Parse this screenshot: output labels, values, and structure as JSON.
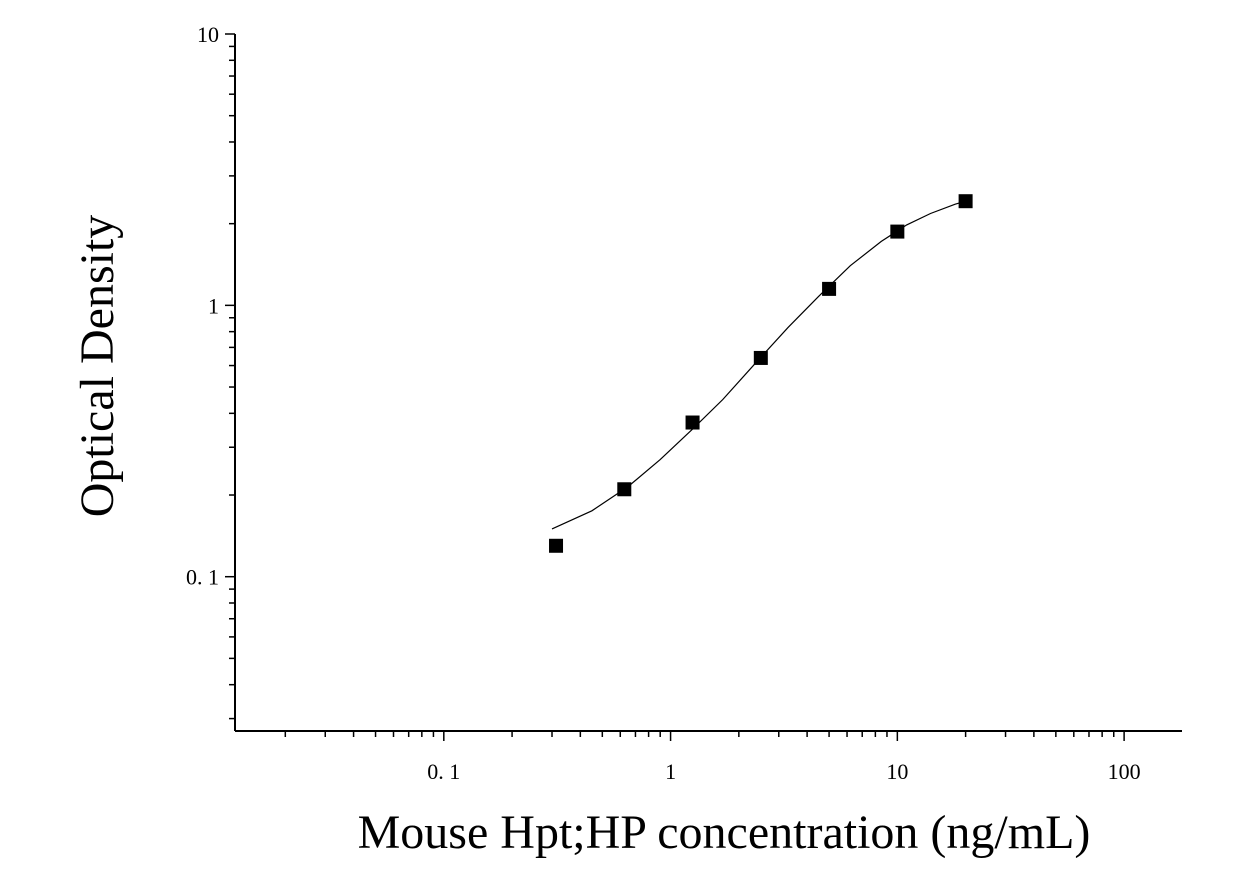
{
  "chart_data": {
    "type": "scatter",
    "xscale": "log",
    "yscale": "log",
    "xlabel": "Mouse Hpt;HP concentration (ng/mL)",
    "ylabel": "Optical Density",
    "xlim": [
      0.012,
      180
    ],
    "ylim": [
      0.027,
      10
    ],
    "x_ticks": [
      {
        "value": 0.1,
        "label": "0. 1"
      },
      {
        "value": 1,
        "label": "1"
      },
      {
        "value": 10,
        "label": "10"
      },
      {
        "value": 100,
        "label": "100"
      }
    ],
    "y_ticks": [
      {
        "value": 0.1,
        "label": "0. 1"
      },
      {
        "value": 1,
        "label": "1"
      },
      {
        "value": 10,
        "label": "10"
      }
    ],
    "grid": false,
    "series": [
      {
        "marker": "square",
        "color": "#000000",
        "x": [
          0.3125,
          0.625,
          1.25,
          2.5,
          5,
          10,
          20
        ],
        "y": [
          0.13,
          0.21,
          0.37,
          0.64,
          1.15,
          1.87,
          2.42
        ]
      }
    ],
    "fit_curve": {
      "color": "#000000",
      "x": [
        0.3,
        0.45,
        0.65,
        0.9,
        1.25,
        1.7,
        2.4,
        3.3,
        4.5,
        6.2,
        8.5,
        11,
        14,
        18,
        20
      ],
      "y": [
        0.15,
        0.175,
        0.215,
        0.27,
        0.35,
        0.45,
        0.62,
        0.83,
        1.08,
        1.4,
        1.72,
        1.98,
        2.18,
        2.36,
        2.42
      ]
    }
  }
}
